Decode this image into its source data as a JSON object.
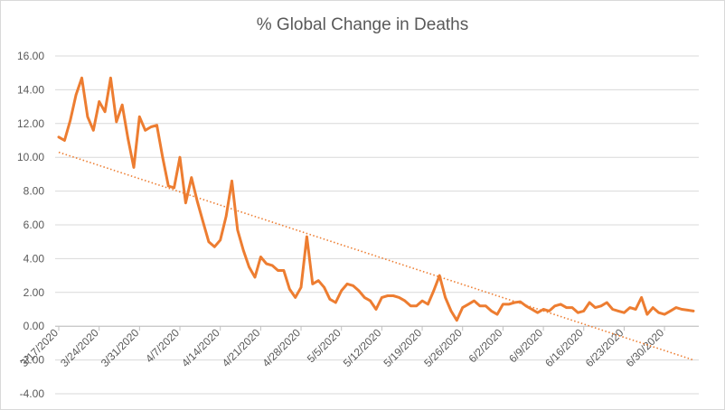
{
  "chart_data": {
    "type": "line",
    "title": "% Global Change in Deaths",
    "xlabel": "",
    "ylabel": "",
    "ylim": [
      -4,
      16
    ],
    "y_ticks": [
      "16.00",
      "14.00",
      "12.00",
      "10.00",
      "8.00",
      "6.00",
      "4.00",
      "2.00",
      "0.00",
      "-2.00",
      "-4.00"
    ],
    "y_tick_values": [
      16,
      14,
      12,
      10,
      8,
      6,
      4,
      2,
      0,
      -2,
      -4
    ],
    "x_ticks": [
      "3/17/2020",
      "3/24/2020",
      "3/31/2020",
      "4/7/2020",
      "4/14/2020",
      "4/21/2020",
      "4/28/2020",
      "5/5/2020",
      "5/12/2020",
      "5/19/2020",
      "5/26/2020",
      "6/2/2020",
      "6/9/2020",
      "6/16/2020",
      "6/23/2020",
      "6/30/2020"
    ],
    "x_start": "3/17/2020",
    "x_end": "7/5/2020",
    "grid": true,
    "legend": "none",
    "series": [
      {
        "line_color": "#ed7d31",
        "values": [
          11.2,
          11.0,
          12.2,
          13.7,
          14.7,
          12.4,
          11.6,
          13.3,
          12.7,
          14.7,
          12.1,
          13.1,
          11.1,
          9.4,
          12.4,
          11.6,
          11.8,
          11.9,
          10.0,
          8.3,
          8.2,
          10.0,
          7.3,
          8.8,
          7.4,
          6.2,
          5.0,
          4.7,
          5.1,
          6.5,
          8.6,
          5.7,
          4.5,
          3.5,
          2.9,
          4.1,
          3.7,
          3.6,
          3.3,
          3.3,
          2.2,
          1.7,
          2.3,
          5.3,
          2.5,
          2.7,
          2.3,
          1.6,
          1.4,
          2.1,
          2.5,
          2.4,
          2.1,
          1.7,
          1.5,
          1.0,
          1.7,
          1.8,
          1.8,
          1.7,
          1.5,
          1.2,
          1.2,
          1.5,
          1.3,
          2.1,
          3.0,
          1.7,
          0.9,
          0.35,
          1.1,
          1.3,
          1.5,
          1.2,
          1.2,
          0.9,
          0.7,
          1.3,
          1.3,
          1.4,
          1.45,
          1.2,
          1.0,
          0.8,
          1.0,
          0.9,
          1.2,
          1.3,
          1.1,
          1.1,
          0.8,
          0.9,
          1.4,
          1.1,
          1.2,
          1.4,
          1.0,
          0.9,
          0.8,
          1.1,
          1.0,
          1.7,
          0.7,
          1.1,
          0.8,
          0.7,
          0.9,
          1.1,
          1.0,
          0.95,
          0.9
        ]
      },
      {
        "style": "dotted-trendline",
        "line_color": "#ed7d31",
        "start_value": 10.3,
        "end_value": -2.0
      }
    ]
  }
}
